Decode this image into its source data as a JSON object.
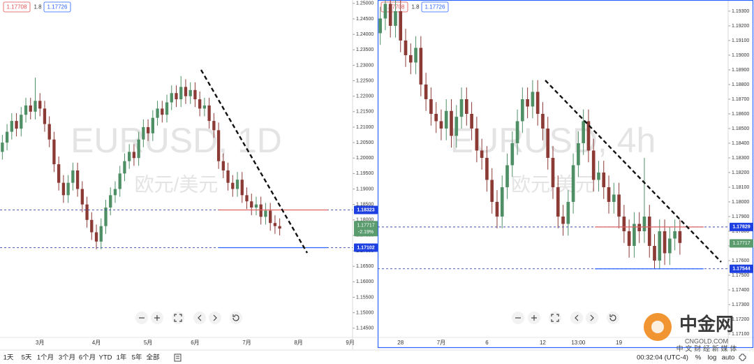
{
  "chart_data": [
    {
      "type": "candlestick",
      "symbol": "EURUSD, 1D",
      "subtitle": "欧元/美元",
      "header": [
        "1.17708",
        "1.8",
        "1.17726"
      ],
      "up_color": "#4f8f66",
      "down_color": "#8b3a35",
      "ylim": [
        1.142,
        1.2511
      ],
      "yticks": [
        {
          "value": 1.145,
          "label": "1.14500"
        },
        {
          "value": 1.15,
          "label": "1.15000"
        },
        {
          "value": 1.155,
          "label": "1.15500"
        },
        {
          "value": 1.16,
          "label": "1.16000"
        },
        {
          "value": 1.165,
          "label": "1.16500"
        },
        {
          "value": 1.17,
          "label": "1.17000"
        },
        {
          "value": 1.175,
          "label": "1.17500"
        },
        {
          "value": 1.18,
          "label": "1.18000"
        },
        {
          "value": 1.185,
          "label": "1.18500"
        },
        {
          "value": 1.19,
          "label": "1.19000"
        },
        {
          "value": 1.195,
          "label": "1.19500"
        },
        {
          "value": 1.2,
          "label": "1.20000"
        },
        {
          "value": 1.205,
          "label": "1.20500"
        },
        {
          "value": 1.21,
          "label": "1.21000"
        },
        {
          "value": 1.215,
          "label": "1.21500"
        },
        {
          "value": 1.22,
          "label": "1.22000"
        },
        {
          "value": 1.225,
          "label": "1.22500"
        },
        {
          "value": 1.23,
          "label": "1.23000"
        },
        {
          "value": 1.235,
          "label": "1.23500"
        },
        {
          "value": 1.24,
          "label": "1.24000"
        },
        {
          "value": 1.245,
          "label": "1.24500"
        },
        {
          "value": 1.25,
          "label": "1.25000"
        }
      ],
      "categories": [
        null,
        null,
        null,
        null,
        null,
        null,
        null,
        null,
        "3月",
        null,
        null,
        null,
        null,
        null,
        null,
        null,
        null,
        null,
        null,
        null,
        "4月",
        null,
        null,
        null,
        null,
        null,
        null,
        null,
        null,
        null,
        null,
        "5月",
        null,
        null,
        null,
        null,
        null,
        null,
        null,
        null,
        null,
        "6月",
        null,
        null,
        null,
        null,
        null,
        null,
        null,
        null,
        null,
        null,
        "7月",
        null,
        null,
        null,
        null,
        null,
        null,
        null,
        null,
        null,
        null,
        "8月",
        null,
        null,
        null,
        null,
        null,
        null,
        null,
        null,
        null,
        null,
        "9月"
      ],
      "open": [
        1.202,
        1.205,
        1.2085,
        1.212,
        1.2095,
        1.214,
        1.217,
        1.215,
        1.2185,
        1.216,
        1.211,
        1.206,
        1.198,
        1.192,
        1.188,
        1.192,
        1.196,
        1.19,
        1.185,
        1.18,
        1.176,
        1.173,
        1.178,
        1.184,
        1.188,
        1.19,
        1.195,
        1.199,
        1.202,
        1.2,
        1.206,
        1.21,
        1.208,
        1.213,
        1.216,
        1.214,
        1.218,
        1.221,
        1.219,
        1.223,
        1.22,
        1.222,
        1.219,
        1.216,
        1.217,
        1.212,
        1.209,
        1.199,
        1.196,
        1.192,
        1.19,
        1.193,
        1.188,
        1.186,
        1.184,
        1.185,
        1.181,
        1.183,
        1.179,
        1.178,
        null,
        null,
        null,
        null,
        null,
        null,
        null,
        null,
        null,
        null,
        null,
        null,
        null,
        null,
        null
      ],
      "high": [
        1.2075,
        1.211,
        1.2145,
        1.2145,
        1.2165,
        1.2195,
        1.2195,
        1.226,
        1.221,
        1.2185,
        1.2135,
        1.2085,
        1.2005,
        1.1945,
        1.1945,
        1.1985,
        1.1985,
        1.1925,
        1.1875,
        1.1825,
        1.1785,
        1.1805,
        1.1865,
        1.1905,
        1.1925,
        1.1975,
        1.2015,
        1.2045,
        1.2045,
        1.2085,
        1.2125,
        1.2125,
        1.2155,
        1.2185,
        1.2185,
        1.2205,
        1.2235,
        1.2235,
        1.2265,
        1.2255,
        1.2245,
        1.2245,
        1.2215,
        1.2195,
        1.2195,
        1.2145,
        1.2115,
        1.2015,
        1.1985,
        1.1945,
        1.1955,
        1.1955,
        1.1905,
        1.1885,
        1.1875,
        1.1875,
        1.1855,
        1.1855,
        1.1815,
        1.1805,
        null,
        null,
        null,
        null,
        null,
        null,
        null,
        null,
        null,
        null,
        null,
        null,
        null,
        null,
        null
      ],
      "low": [
        1.1995,
        1.2025,
        1.206,
        1.207,
        1.207,
        1.2115,
        1.2125,
        1.2125,
        1.2135,
        1.2085,
        1.2035,
        1.1955,
        1.1895,
        1.1855,
        1.1855,
        1.1895,
        1.1875,
        1.1825,
        1.1775,
        1.1735,
        1.1705,
        1.1705,
        1.1755,
        1.1815,
        1.1855,
        1.1875,
        1.1925,
        1.1965,
        1.1975,
        1.1975,
        1.2035,
        1.2055,
        1.2055,
        1.2105,
        1.2115,
        1.2115,
        1.2155,
        1.2165,
        1.2165,
        1.2175,
        1.2175,
        1.2165,
        1.2135,
        1.2135,
        1.2095,
        1.2065,
        1.1965,
        1.1935,
        1.1895,
        1.1875,
        1.1875,
        1.1855,
        1.1835,
        1.1815,
        1.1815,
        1.1785,
        1.1785,
        1.1765,
        1.1755,
        1.175,
        null,
        null,
        null,
        null,
        null,
        null,
        null,
        null,
        null,
        null,
        null,
        null,
        null,
        null,
        null
      ],
      "close": [
        1.205,
        1.2085,
        1.212,
        1.2095,
        1.214,
        1.217,
        1.215,
        1.2185,
        1.216,
        1.211,
        1.206,
        1.198,
        1.192,
        1.188,
        1.192,
        1.196,
        1.19,
        1.185,
        1.18,
        1.176,
        1.173,
        1.178,
        1.184,
        1.188,
        1.19,
        1.195,
        1.199,
        1.202,
        1.2,
        1.206,
        1.21,
        1.208,
        1.213,
        1.216,
        1.214,
        1.218,
        1.221,
        1.219,
        1.223,
        1.22,
        1.222,
        1.219,
        1.216,
        1.217,
        1.212,
        1.209,
        1.199,
        1.196,
        1.192,
        1.19,
        1.193,
        1.188,
        1.186,
        1.184,
        1.185,
        1.181,
        1.183,
        1.179,
        1.178,
        1.1772,
        null,
        null,
        null,
        null,
        null,
        null,
        null,
        null,
        null,
        null,
        null,
        null,
        null,
        null,
        null
      ],
      "levels": [
        1.18323,
        1.17102
      ],
      "level_colors": [
        "#e06060",
        "#2962ff"
      ],
      "last": 1.17717,
      "last_change": "-2.19%"
    },
    {
      "type": "candlestick",
      "symbol": "EURUSD, 4h",
      "subtitle": "欧元/美元",
      "header": [
        "1.17708",
        "1.8",
        "1.17726"
      ],
      "up_color": "#4f8f66",
      "down_color": "#8b3a35",
      "ylim": [
        1.17076,
        1.19376
      ],
      "yticks": [
        {
          "value": 1.171,
          "label": "1.17100"
        },
        {
          "value": 1.172,
          "label": "1.17200"
        },
        {
          "value": 1.173,
          "label": "1.17300"
        },
        {
          "value": 1.174,
          "label": "1.17400"
        },
        {
          "value": 1.175,
          "label": "1.17500"
        },
        {
          "value": 1.176,
          "label": "1.17600"
        },
        {
          "value": 1.177,
          "label": "1.17700"
        },
        {
          "value": 1.178,
          "label": "1.17800"
        },
        {
          "value": 1.179,
          "label": "1.17900"
        },
        {
          "value": 1.18,
          "label": "1.18000"
        },
        {
          "value": 1.181,
          "label": "1.18100"
        },
        {
          "value": 1.182,
          "label": "1.18200"
        },
        {
          "value": 1.183,
          "label": "1.18300"
        },
        {
          "value": 1.184,
          "label": "1.18400"
        },
        {
          "value": 1.185,
          "label": "1.18500"
        },
        {
          "value": 1.186,
          "label": "1.18600"
        },
        {
          "value": 1.187,
          "label": "1.18700"
        },
        {
          "value": 1.188,
          "label": "1.18800"
        },
        {
          "value": 1.189,
          "label": "1.18900"
        },
        {
          "value": 1.19,
          "label": "1.19000"
        },
        {
          "value": 1.191,
          "label": "1.19100"
        },
        {
          "value": 1.192,
          "label": "1.19200"
        },
        {
          "value": 1.193,
          "label": "1.19300"
        }
      ],
      "categories": [
        null,
        null,
        null,
        null,
        "28",
        null,
        null,
        null,
        null,
        null,
        null,
        null,
        "7月",
        null,
        null,
        null,
        null,
        null,
        null,
        null,
        null,
        "6",
        null,
        null,
        null,
        null,
        null,
        null,
        null,
        null,
        null,
        null,
        "12",
        null,
        null,
        null,
        null,
        null,
        null,
        "13:00",
        null,
        null,
        null,
        null,
        null,
        null,
        null,
        "19",
        null,
        null,
        null,
        null,
        null,
        null,
        null,
        null,
        null,
        null,
        null,
        null,
        null,
        null,
        null,
        null,
        null,
        null,
        null,
        null,
        null
      ],
      "open": [
        1.1915,
        1.1925,
        1.1935,
        1.192,
        1.193,
        1.191,
        1.19,
        1.1895,
        1.1905,
        1.188,
        1.187,
        1.186,
        1.1855,
        1.185,
        1.1862,
        1.1845,
        1.1858,
        1.187,
        1.186,
        1.185,
        1.1835,
        1.183,
        1.1815,
        1.18,
        1.179,
        1.181,
        1.1825,
        1.184,
        1.1855,
        1.187,
        1.1865,
        1.1875,
        1.186,
        1.185,
        1.183,
        1.181,
        1.179,
        1.1785,
        1.18,
        1.1825,
        1.184,
        1.1855,
        1.1835,
        1.1815,
        1.182,
        1.181,
        1.18,
        1.1805,
        1.179,
        1.178,
        1.177,
        1.1785,
        1.178,
        1.179,
        1.177,
        1.176,
        1.178,
        1.1765,
        1.1775,
        1.178,
        null,
        null,
        null,
        null,
        null,
        null,
        null,
        null,
        null
      ],
      "high": [
        1.1933,
        1.1943,
        1.1943,
        1.1938,
        1.1938,
        1.1918,
        1.1908,
        1.1913,
        1.1913,
        1.1888,
        1.1878,
        1.1868,
        1.1863,
        1.187,
        1.187,
        1.1866,
        1.1878,
        1.1878,
        1.1868,
        1.1858,
        1.1843,
        1.1838,
        1.1823,
        1.1808,
        1.1818,
        1.1833,
        1.1848,
        1.1863,
        1.1878,
        1.1878,
        1.1883,
        1.1883,
        1.1868,
        1.1858,
        1.1838,
        1.1818,
        1.1798,
        1.1808,
        1.1833,
        1.1848,
        1.1863,
        1.1863,
        1.1843,
        1.1828,
        1.1828,
        1.1818,
        1.1813,
        1.1813,
        1.1798,
        1.1788,
        1.1793,
        1.1793,
        1.183,
        1.1798,
        1.1778,
        1.1788,
        1.1788,
        1.1783,
        1.1788,
        1.1788,
        null,
        null,
        null,
        null,
        null,
        null,
        null,
        null,
        null
      ],
      "low": [
        1.1907,
        1.1917,
        1.1912,
        1.1912,
        1.1902,
        1.1892,
        1.1887,
        1.1887,
        1.1872,
        1.1862,
        1.1852,
        1.1847,
        1.1842,
        1.1842,
        1.1837,
        1.1837,
        1.185,
        1.1852,
        1.1842,
        1.1827,
        1.1822,
        1.1807,
        1.1792,
        1.1782,
        1.1782,
        1.1802,
        1.1817,
        1.1832,
        1.1847,
        1.1857,
        1.1857,
        1.1852,
        1.1842,
        1.1822,
        1.1802,
        1.1782,
        1.1777,
        1.1777,
        1.1792,
        1.1817,
        1.1832,
        1.1827,
        1.1807,
        1.1807,
        1.1802,
        1.1792,
        1.1792,
        1.1782,
        1.1772,
        1.1762,
        1.1762,
        1.1772,
        1.1772,
        1.1762,
        1.1754,
        1.1754,
        1.1757,
        1.1757,
        1.1767,
        1.1764,
        null,
        null,
        null,
        null,
        null,
        null,
        null,
        null,
        null
      ],
      "close": [
        1.1925,
        1.1935,
        1.192,
        1.193,
        1.191,
        1.19,
        1.1895,
        1.1905,
        1.188,
        1.187,
        1.186,
        1.1855,
        1.185,
        1.1862,
        1.1845,
        1.1858,
        1.187,
        1.186,
        1.185,
        1.1835,
        1.183,
        1.1815,
        1.18,
        1.179,
        1.181,
        1.1825,
        1.184,
        1.1855,
        1.187,
        1.1865,
        1.1875,
        1.186,
        1.185,
        1.183,
        1.181,
        1.179,
        1.1785,
        1.18,
        1.1825,
        1.184,
        1.1855,
        1.1835,
        1.1815,
        1.182,
        1.181,
        1.18,
        1.1805,
        1.179,
        1.178,
        1.177,
        1.1785,
        1.178,
        1.179,
        1.177,
        1.176,
        1.178,
        1.1765,
        1.1775,
        1.178,
        1.1772,
        null,
        null,
        null,
        null,
        null,
        null,
        null,
        null,
        null
      ],
      "levels": [
        1.17829,
        1.17544
      ],
      "level_colors": [
        "#e06060",
        "#2962ff"
      ],
      "last": 1.17717
    }
  ],
  "toolbar": {
    "ranges": [
      "1天",
      "5天",
      "1个月",
      "3个月",
      "6个月",
      "YTD",
      "1年",
      "5年",
      "全部"
    ],
    "time": "00:32:04 (UTC-4)",
    "scale": [
      "%",
      "log",
      "auto"
    ]
  },
  "logo": {
    "name": "中金网",
    "site": "CNGOLD.COM",
    "tagline": "中 文 财 经 新 媒 体"
  }
}
